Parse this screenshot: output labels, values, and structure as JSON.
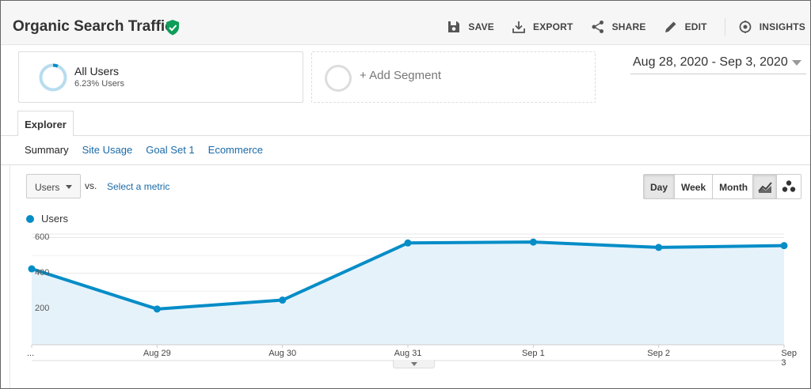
{
  "header": {
    "title": "Organic Search Traffic",
    "toolbar": [
      {
        "label": "SAVE",
        "icon": "save-icon"
      },
      {
        "label": "EXPORT",
        "icon": "export-icon"
      },
      {
        "label": "SHARE",
        "icon": "share-icon"
      },
      {
        "label": "EDIT",
        "icon": "edit-icon"
      },
      {
        "label": "INSIGHTS",
        "icon": "insights-icon"
      }
    ]
  },
  "segments": {
    "active": {
      "name": "All Users",
      "sub": "6.23% Users",
      "share": 0.0623,
      "color": "#b8dcef",
      "accent": "#058dc7"
    },
    "add_label": "+ Add Segment"
  },
  "date_range": "Aug 28, 2020 - Sep 3, 2020",
  "tabs": {
    "explorer": "Explorer",
    "subtabs": [
      "Summary",
      "Site Usage",
      "Goal Set 1",
      "Ecommerce"
    ]
  },
  "metric": {
    "selected": "Users",
    "vs": "vs.",
    "select_metric": "Select a metric"
  },
  "period": {
    "options": [
      "Day",
      "Week",
      "Month"
    ],
    "selected": "Day"
  },
  "chart_types": {
    "options": [
      "line-chart-icon",
      "motion-chart-icon"
    ],
    "selected": "line-chart-icon"
  },
  "colors": {
    "series": "#058dc7",
    "fill": "#e6f2fa"
  },
  "chart_data": {
    "type": "area",
    "legend": "Users",
    "x": [
      "...",
      "Aug 29",
      "Aug 30",
      "Aug 31",
      "Sep 1",
      "Sep 2",
      "Sep 3"
    ],
    "series": [
      {
        "name": "Users",
        "values": [
          425,
          200,
          250,
          570,
          575,
          545,
          555
        ]
      }
    ],
    "yticks": [
      200,
      400,
      600
    ],
    "ylim": [
      0,
      620
    ],
    "grid": true
  }
}
